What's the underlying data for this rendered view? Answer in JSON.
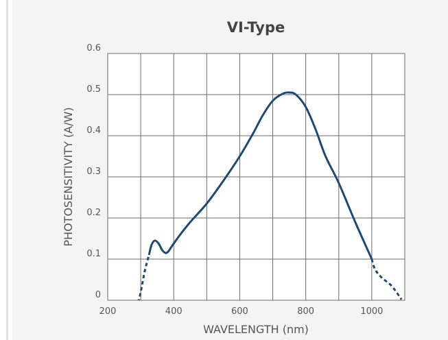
{
  "chart_data": {
    "type": "line",
    "title": "VI-Type",
    "xlabel": "WAVELENGTH (nm)",
    "ylabel": "PHOTOSENSITIVITY (A/W)",
    "xlim": [
      200,
      1100
    ],
    "ylim": [
      0,
      0.6
    ],
    "grid": true,
    "legend": "none",
    "x_ticks": [
      200,
      300,
      400,
      500,
      600,
      700,
      800,
      900,
      1000,
      1100
    ],
    "x_tick_labels": [
      "200",
      "",
      "400",
      "",
      "600",
      "",
      "800",
      "",
      "1000",
      ""
    ],
    "y_ticks": [
      0,
      0.1,
      0.2,
      0.3,
      0.4,
      0.5,
      0.6
    ],
    "y_tick_labels": [
      "0",
      "0.1",
      "0.2",
      "0.3",
      "0.4",
      "0.5",
      "0.6"
    ],
    "colors": {
      "line": "#1d4a72",
      "grid": "#6a6a6a"
    },
    "series": [
      {
        "style": "dashed",
        "x": [
          288,
          300,
          312,
          325
        ],
        "y": [
          -0.02,
          0.02,
          0.07,
          0.11
        ]
      },
      {
        "style": "solid",
        "x": [
          325,
          333,
          343,
          354,
          365,
          375,
          383,
          395,
          420,
          450,
          500,
          550,
          600,
          640,
          670,
          700,
          730,
          750,
          770,
          800,
          830,
          860,
          900,
          950,
          1000
        ],
        "y": [
          0.11,
          0.135,
          0.145,
          0.138,
          0.122,
          0.115,
          0.118,
          0.132,
          0.16,
          0.19,
          0.235,
          0.29,
          0.35,
          0.405,
          0.45,
          0.485,
          0.502,
          0.505,
          0.5,
          0.47,
          0.415,
          0.35,
          0.285,
          0.19,
          0.1
        ]
      },
      {
        "style": "dashed",
        "x": [
          1000,
          1010,
          1030,
          1060,
          1090
        ],
        "y": [
          0.1,
          0.075,
          0.055,
          0.035,
          0.002
        ]
      }
    ]
  }
}
